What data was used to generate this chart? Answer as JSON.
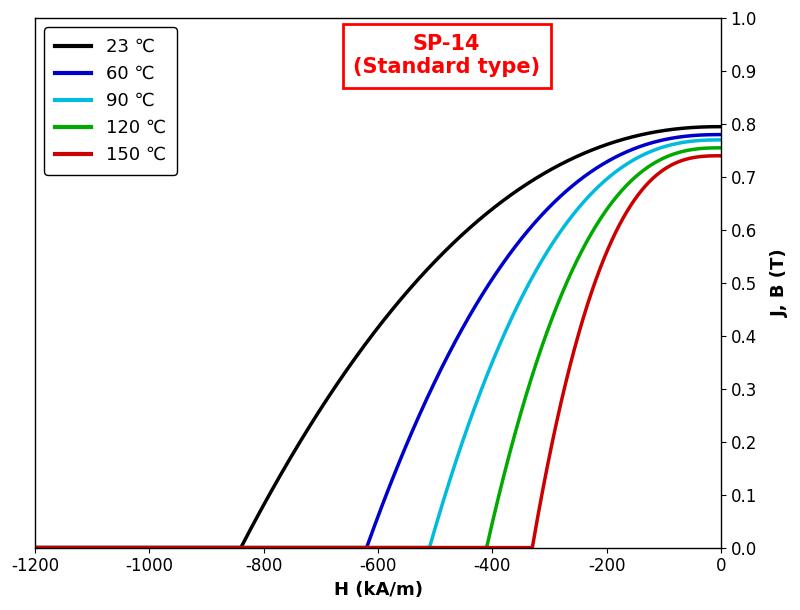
{
  "xlabel": "H (kA/m)",
  "ylabel": "J, B (T)",
  "xlim": [
    -1200,
    0
  ],
  "ylim": [
    0.0,
    1.0
  ],
  "xticks": [
    -1200,
    -1000,
    -800,
    -600,
    -400,
    -200,
    0
  ],
  "yticks": [
    0.0,
    0.1,
    0.2,
    0.3,
    0.4,
    0.5,
    0.6,
    0.7,
    0.8,
    0.9,
    1.0
  ],
  "curves": [
    {
      "label": "23 ℃",
      "color": "#000000",
      "Hc": -840,
      "Br": 0.795,
      "n": 2.2
    },
    {
      "label": "60 ℃",
      "color": "#0000cc",
      "Hc": -620,
      "Br": 0.78,
      "n": 2.4
    },
    {
      "label": "90 ℃",
      "color": "#00bbdd",
      "Hc": -510,
      "Br": 0.77,
      "n": 2.5
    },
    {
      "label": "120 ℃",
      "color": "#00aa00",
      "Hc": -410,
      "Br": 0.755,
      "n": 2.6
    },
    {
      "label": "150 ℃",
      "color": "#cc0000",
      "Hc": -330,
      "Br": 0.74,
      "n": 2.8
    }
  ],
  "legend_fontsize": 13,
  "axis_fontsize": 13,
  "tick_fontsize": 12,
  "annotation_fontsize": 15,
  "linewidth": 2.5,
  "background_color": "#ffffff",
  "figure_bg": "#ffffff"
}
